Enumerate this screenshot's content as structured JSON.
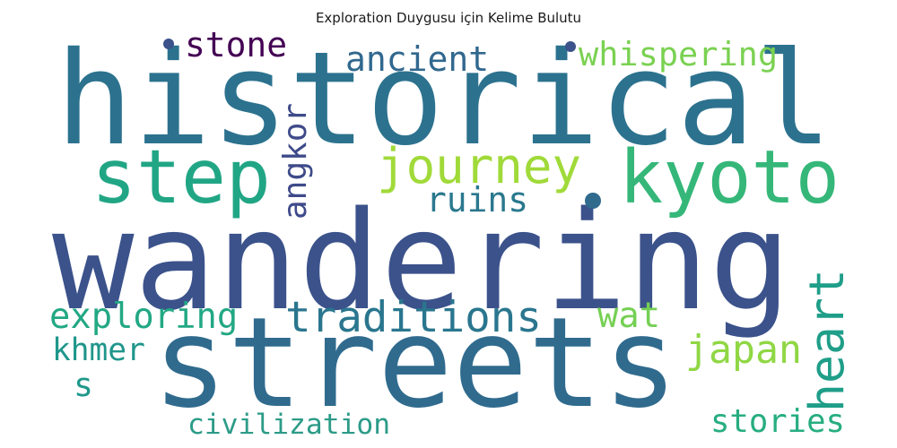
{
  "chart_data": {
    "type": "wordcloud",
    "title": "Exploration Duygusu için Kelime Bulutu",
    "words": [
      {
        "text": "historical",
        "color": "#2c728e"
      },
      {
        "text": "wandering",
        "color": "#3b528b"
      },
      {
        "text": "streets",
        "color": "#306b8e"
      },
      {
        "text": "step",
        "color": "#21a685"
      },
      {
        "text": "kyoto",
        "color": "#35b779"
      },
      {
        "text": "journey",
        "color": "#a0da39"
      },
      {
        "text": "whispering",
        "color": "#7ad151"
      },
      {
        "text": "ancient",
        "color": "#31688e"
      },
      {
        "text": "stone",
        "color": "#440154"
      },
      {
        "text": "angkor",
        "color": "#3e4a89"
      },
      {
        "text": "ruins",
        "color": "#2a788e"
      },
      {
        "text": "heart",
        "color": "#1f9e89"
      },
      {
        "text": "traditions",
        "color": "#2a768e"
      },
      {
        "text": "exploring",
        "color": "#22a884"
      },
      {
        "text": "wat",
        "color": "#75d054"
      },
      {
        "text": "japan",
        "color": "#8fd744"
      },
      {
        "text": "khmer",
        "color": "#1f968b"
      },
      {
        "text": "s",
        "color": "#1f988b"
      },
      {
        "text": "civilization",
        "color": "#2c9b88"
      },
      {
        "text": "stories",
        "color": "#27ad81"
      }
    ],
    "dots": [
      {
        "color": "#3b528b"
      },
      {
        "color": "#3b528b"
      },
      {
        "color": "#306b8e"
      }
    ]
  }
}
